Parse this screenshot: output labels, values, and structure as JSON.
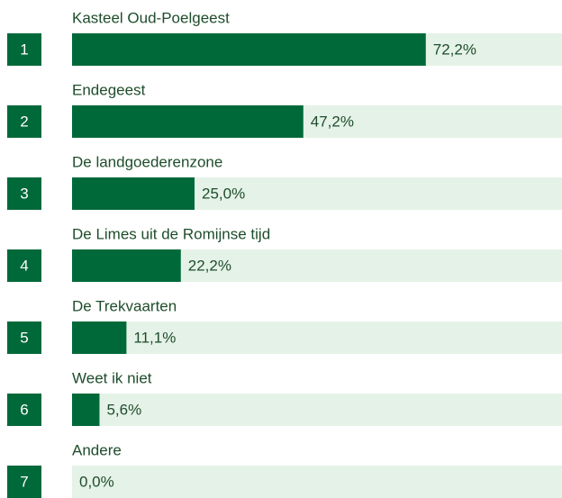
{
  "chart_data": {
    "type": "bar",
    "orientation": "horizontal",
    "ranks": [
      1,
      2,
      3,
      4,
      5,
      6,
      7
    ],
    "categories": [
      "Kasteel Oud-Poelgeest",
      "Endegeest",
      "De landgoederenzone",
      "De Limes uit de Romijnse tijd",
      "De Trekvaarten",
      "Weet ik niet",
      "Andere"
    ],
    "values": [
      72.2,
      47.2,
      25.0,
      22.2,
      11.1,
      5.6,
      0.0
    ],
    "value_labels": [
      "72,2%",
      "47,2%",
      "25,0%",
      "22,2%",
      "11,1%",
      "5,6%",
      "0,0%"
    ],
    "color": "#00693a",
    "track_color": "#e5f2e8",
    "xlim": [
      0,
      100
    ]
  }
}
